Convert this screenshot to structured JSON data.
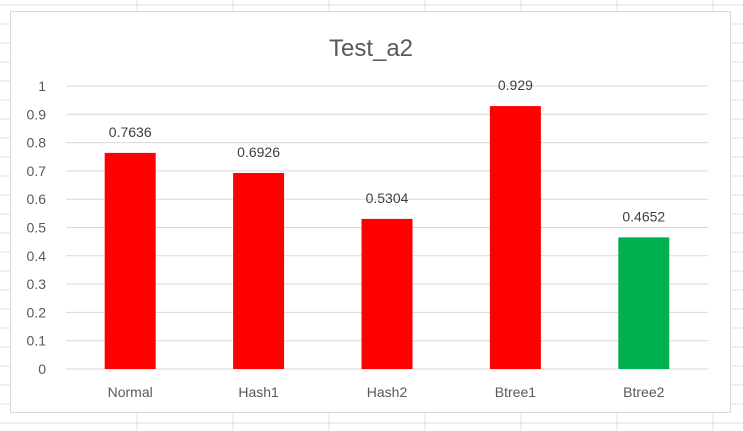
{
  "chart_data": {
    "type": "bar",
    "title": "Test_a2",
    "categories": [
      "Normal",
      "Hash1",
      "Hash2",
      "Btree1",
      "Btree2"
    ],
    "values": [
      0.7636,
      0.6926,
      0.5304,
      0.929,
      0.4652
    ],
    "data_labels": [
      "0.7636",
      "0.6926",
      "0.5304",
      "0.929",
      "0.4652"
    ],
    "bar_colors": [
      "#ff0000",
      "#ff0000",
      "#ff0000",
      "#ff0000",
      "#00b050"
    ],
    "ylim": [
      0,
      1
    ],
    "y_ticks": [
      0,
      0.1,
      0.2,
      0.3,
      0.4,
      0.5,
      0.6,
      0.7,
      0.8,
      0.9,
      1
    ],
    "y_tick_labels": [
      "0",
      "0.1",
      "0.2",
      "0.3",
      "0.4",
      "0.5",
      "0.6",
      "0.7",
      "0.8",
      "0.9",
      "1"
    ],
    "grid": true,
    "legend": "none",
    "xlabel": "",
    "ylabel": ""
  },
  "colors": {
    "gridline": "#d9d9d9",
    "sheet_grid": "#e1e1e1",
    "text": "#595959"
  }
}
